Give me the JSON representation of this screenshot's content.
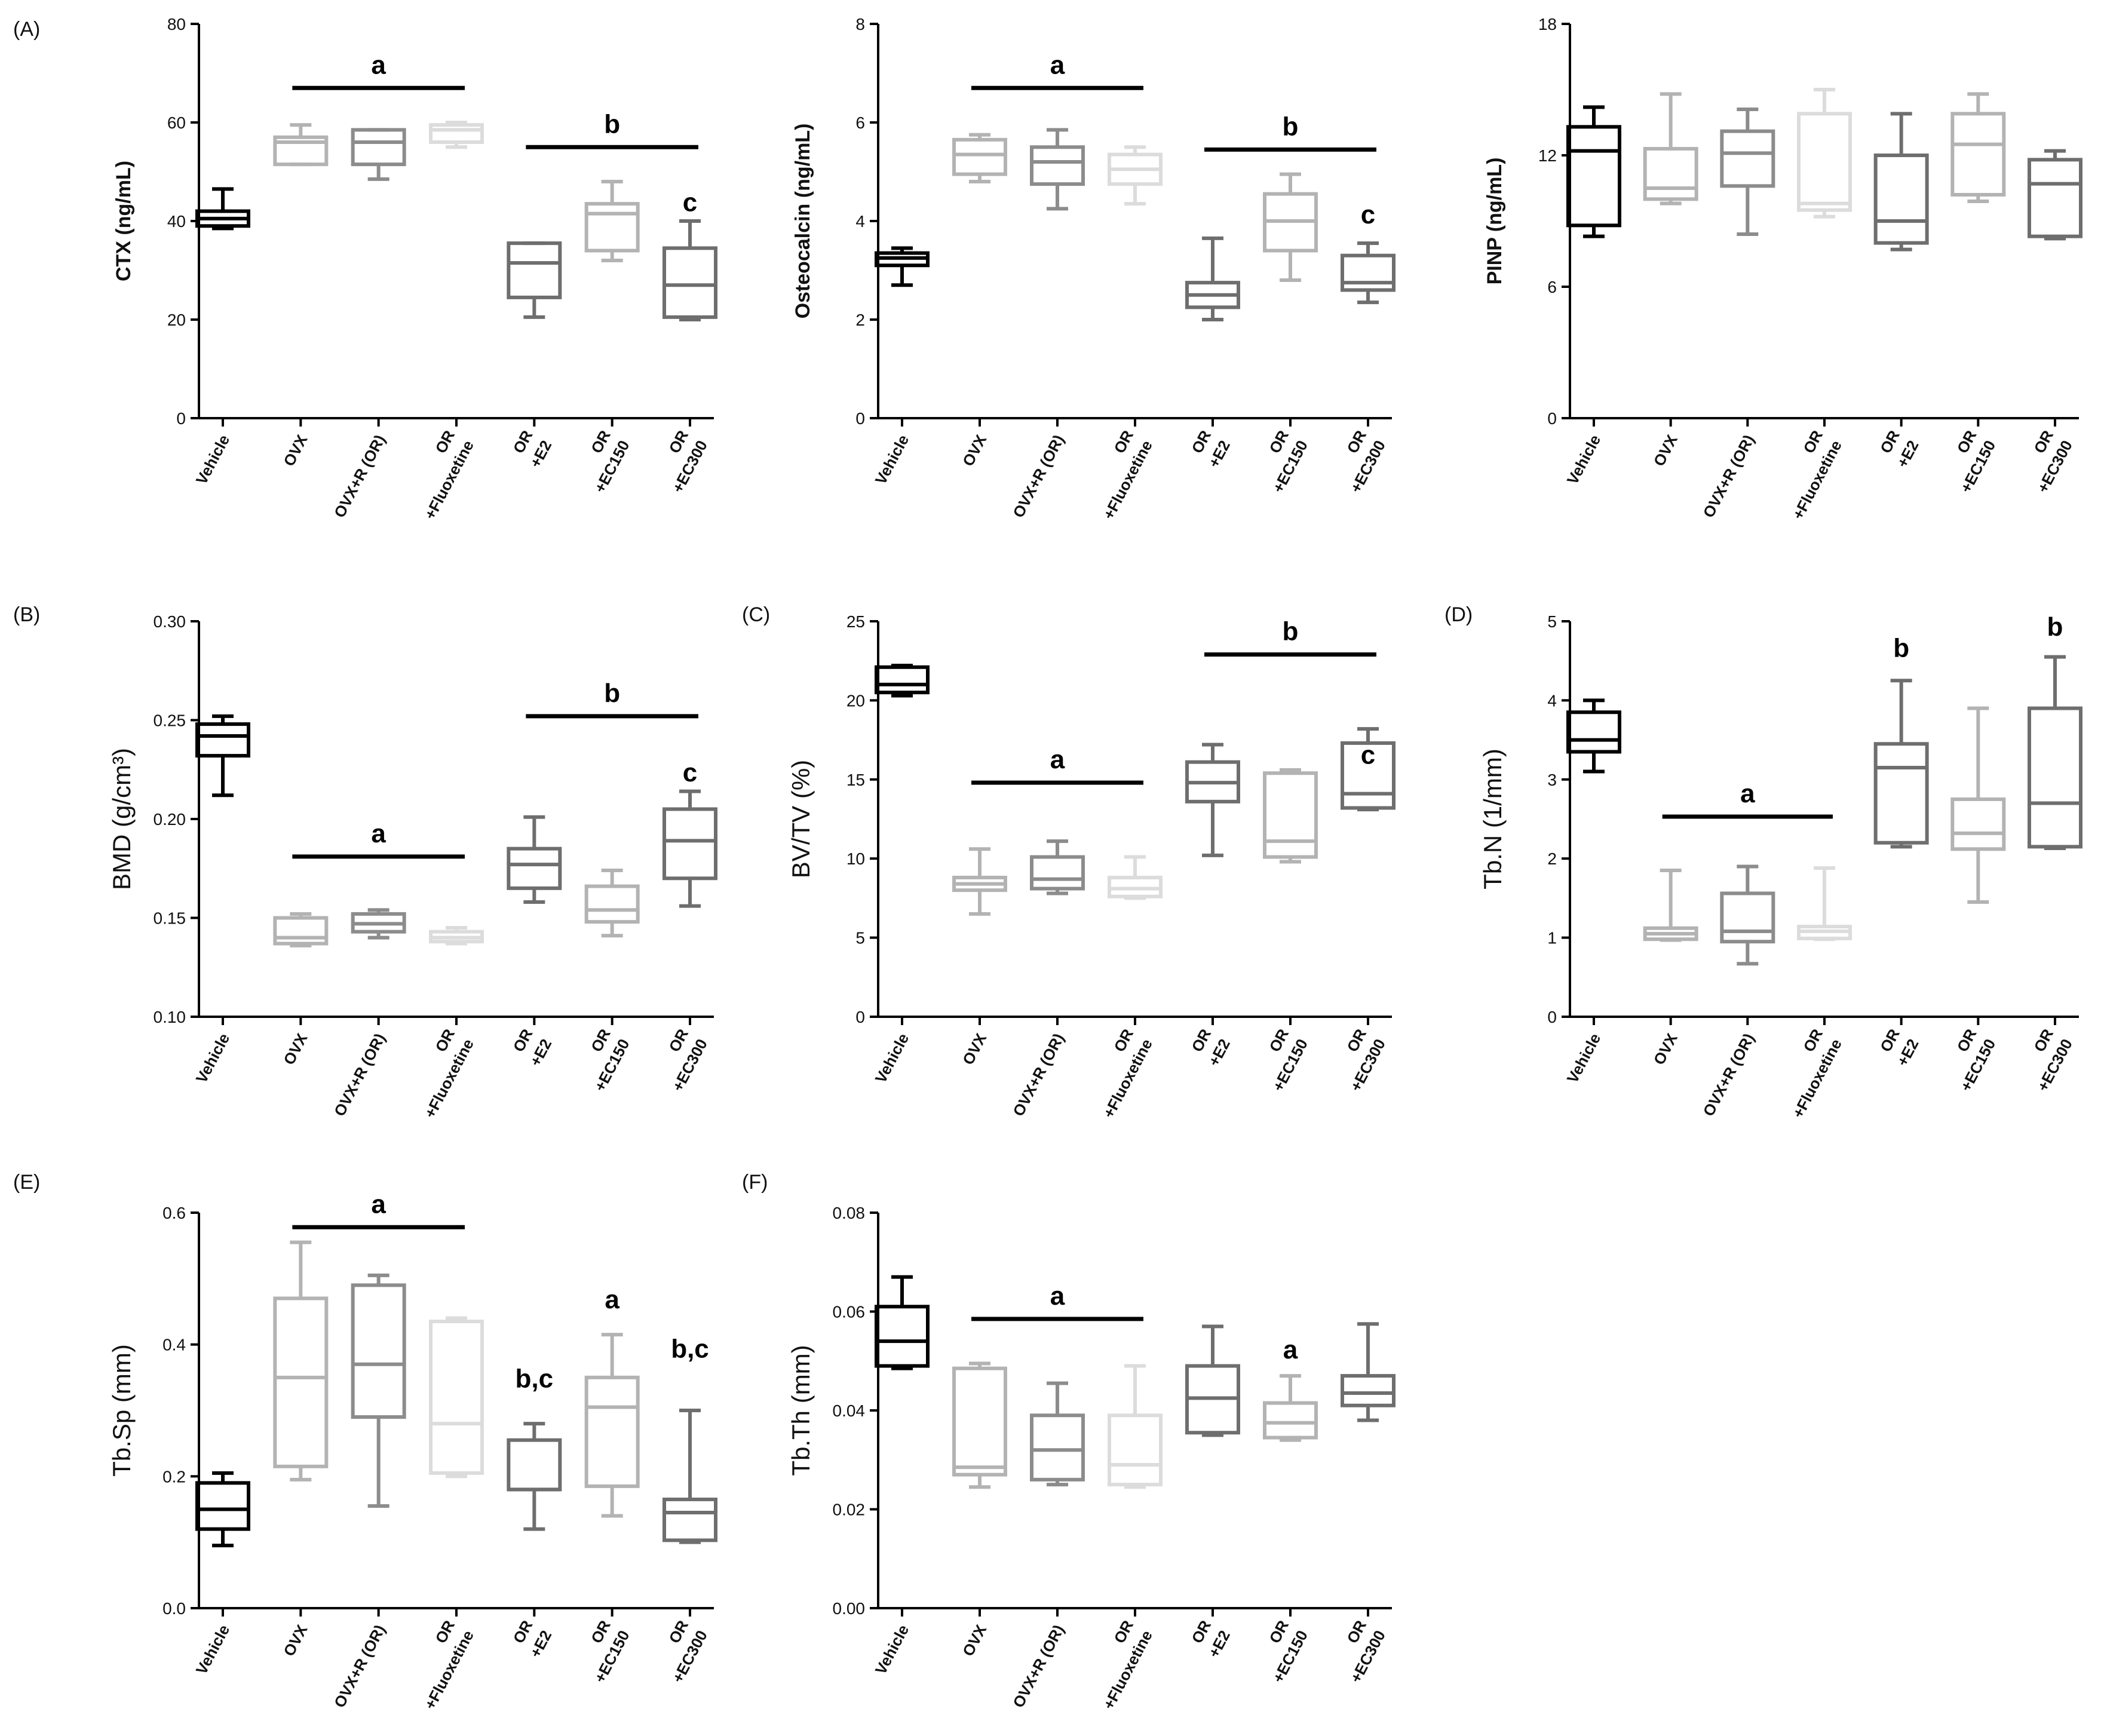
{
  "figure": {
    "panels": [
      {
        "id": "A1",
        "label": "(A)"
      },
      {
        "id": "A2",
        "label": ""
      },
      {
        "id": "A3",
        "label": ""
      },
      {
        "id": "B",
        "label": "(B)"
      },
      {
        "id": "C",
        "label": "(C)"
      },
      {
        "id": "D",
        "label": "(D)"
      },
      {
        "id": "E",
        "label": "(E)"
      },
      {
        "id": "F",
        "label": "(F)"
      }
    ]
  },
  "chart_data": [
    {
      "id": "A1",
      "type": "box",
      "panel_label": "(A)",
      "ylabel": "CTX (ng/mL)",
      "ylim": [
        0,
        80
      ],
      "yticks": [
        "0",
        "20",
        "40",
        "60",
        "80"
      ],
      "categories": [
        [
          "Vehicle"
        ],
        [
          "OVX"
        ],
        [
          "OVX+R (OR)"
        ],
        [
          "OR",
          "+Fluoxetine"
        ],
        [
          "OR",
          "+E2"
        ],
        [
          "OR",
          "+EC150"
        ],
        [
          "OR",
          "+EC300"
        ]
      ],
      "colors": [
        "#000000",
        "#b3b3b3",
        "#8c8c8c",
        "#dcdcdc",
        "#6e6e6e",
        "#b3b3b3",
        "#6e6e6e"
      ],
      "boxes": [
        {
          "min": 38.5,
          "q1": 39,
          "median": 40.5,
          "q3": 42,
          "max": 46.5
        },
        {
          "min": 51.5,
          "q1": 51.5,
          "median": 56,
          "q3": 57,
          "max": 59.5
        },
        {
          "min": 48.5,
          "q1": 51.5,
          "median": 56,
          "q3": 58.5,
          "max": 58.5
        },
        {
          "min": 55,
          "q1": 56,
          "median": 58.5,
          "q3": 59.5,
          "max": 60
        },
        {
          "min": 20.5,
          "q1": 24.5,
          "median": 31.5,
          "q3": 35.5,
          "max": 35.5
        },
        {
          "min": 32,
          "q1": 34,
          "median": 41.5,
          "q3": 43.5,
          "max": 48
        },
        {
          "min": 20,
          "q1": 20.5,
          "median": 27,
          "q3": 34.5,
          "max": 40
        }
      ],
      "annotations": [
        {
          "text": "a",
          "bar": [
            1,
            3
          ],
          "y": 67
        },
        {
          "text": "b",
          "bar": [
            4,
            6
          ],
          "y": 55
        },
        {
          "text": "c",
          "cat": 6,
          "y": 42
        }
      ]
    },
    {
      "id": "A2",
      "type": "box",
      "panel_label": "",
      "ylabel": "Osteocalcin (ng/mL)",
      "ylim": [
        0,
        8
      ],
      "yticks": [
        "0",
        "2",
        "4",
        "6",
        "8"
      ],
      "categories": [
        [
          "Vehicle"
        ],
        [
          "OVX"
        ],
        [
          "OVX+R (OR)"
        ],
        [
          "OR",
          "+Fluoxetine"
        ],
        [
          "OR",
          "+E2"
        ],
        [
          "OR",
          "+EC150"
        ],
        [
          "OR",
          "+EC300"
        ]
      ],
      "colors": [
        "#000000",
        "#b3b3b3",
        "#8c8c8c",
        "#dcdcdc",
        "#6e6e6e",
        "#b3b3b3",
        "#6e6e6e"
      ],
      "boxes": [
        {
          "min": 2.7,
          "q1": 3.1,
          "median": 3.25,
          "q3": 3.35,
          "max": 3.45
        },
        {
          "min": 4.8,
          "q1": 4.95,
          "median": 5.35,
          "q3": 5.65,
          "max": 5.75
        },
        {
          "min": 4.25,
          "q1": 4.75,
          "median": 5.2,
          "q3": 5.5,
          "max": 5.85
        },
        {
          "min": 4.35,
          "q1": 4.75,
          "median": 5.05,
          "q3": 5.35,
          "max": 5.5
        },
        {
          "min": 2.0,
          "q1": 2.25,
          "median": 2.5,
          "q3": 2.75,
          "max": 3.65
        },
        {
          "min": 2.8,
          "q1": 3.4,
          "median": 4.0,
          "q3": 4.55,
          "max": 4.95
        },
        {
          "min": 2.35,
          "q1": 2.6,
          "median": 2.75,
          "q3": 3.3,
          "max": 3.55
        }
      ],
      "annotations": [
        {
          "text": "a",
          "bar": [
            1,
            3
          ],
          "y": 6.7
        },
        {
          "text": "b",
          "bar": [
            4,
            6
          ],
          "y": 5.45
        },
        {
          "text": "c",
          "cat": 6,
          "y": 3.95
        }
      ]
    },
    {
      "id": "A3",
      "type": "box",
      "panel_label": "",
      "ylabel": "PINP (ng/mL)",
      "ylim": [
        0,
        18
      ],
      "yticks": [
        "0",
        "6",
        "12",
        "18"
      ],
      "categories": [
        [
          "Vehicle"
        ],
        [
          "OVX"
        ],
        [
          "OVX+R (OR)"
        ],
        [
          "OR",
          "+Fluoxetine"
        ],
        [
          "OR",
          "+E2"
        ],
        [
          "OR",
          "+EC150"
        ],
        [
          "OR",
          "+EC300"
        ]
      ],
      "colors": [
        "#000000",
        "#b3b3b3",
        "#8c8c8c",
        "#dcdcdc",
        "#6e6e6e",
        "#b3b3b3",
        "#6e6e6e"
      ],
      "boxes": [
        {
          "min": 8.3,
          "q1": 8.8,
          "median": 12.2,
          "q3": 13.3,
          "max": 14.2
        },
        {
          "min": 9.8,
          "q1": 10.0,
          "median": 10.5,
          "q3": 12.3,
          "max": 14.8
        },
        {
          "min": 8.4,
          "q1": 10.6,
          "median": 12.1,
          "q3": 13.1,
          "max": 14.1
        },
        {
          "min": 9.2,
          "q1": 9.5,
          "median": 9.8,
          "q3": 13.9,
          "max": 15.0
        },
        {
          "min": 7.7,
          "q1": 8.0,
          "median": 9.0,
          "q3": 12.0,
          "max": 13.9
        },
        {
          "min": 9.9,
          "q1": 10.2,
          "median": 12.5,
          "q3": 13.9,
          "max": 14.8
        },
        {
          "min": 8.2,
          "q1": 8.3,
          "median": 10.7,
          "q3": 11.8,
          "max": 12.2
        }
      ],
      "annotations": []
    },
    {
      "id": "B",
      "type": "box",
      "panel_label": "(B)",
      "ylabel": "BMD (g/cm³)",
      "ylim": [
        0.1,
        0.3
      ],
      "yticks": [
        "0.10",
        "0.15",
        "0.20",
        "0.25",
        "0.30"
      ],
      "categories": [
        [
          "Vehicle"
        ],
        [
          "OVX"
        ],
        [
          "OVX+R (OR)"
        ],
        [
          "OR",
          "+Fluoxetine"
        ],
        [
          "OR",
          "+E2"
        ],
        [
          "OR",
          "+EC150"
        ],
        [
          "OR",
          "+EC300"
        ]
      ],
      "colors": [
        "#000000",
        "#b3b3b3",
        "#8c8c8c",
        "#dcdcdc",
        "#6e6e6e",
        "#b3b3b3",
        "#6e6e6e"
      ],
      "boxes": [
        {
          "min": 0.212,
          "q1": 0.232,
          "median": 0.242,
          "q3": 0.248,
          "max": 0.252
        },
        {
          "min": 0.136,
          "q1": 0.137,
          "median": 0.14,
          "q3": 0.15,
          "max": 0.152
        },
        {
          "min": 0.14,
          "q1": 0.143,
          "median": 0.147,
          "q3": 0.152,
          "max": 0.154
        },
        {
          "min": 0.137,
          "q1": 0.138,
          "median": 0.14,
          "q3": 0.143,
          "max": 0.145
        },
        {
          "min": 0.158,
          "q1": 0.165,
          "median": 0.177,
          "q3": 0.185,
          "max": 0.201
        },
        {
          "min": 0.141,
          "q1": 0.148,
          "median": 0.154,
          "q3": 0.166,
          "max": 0.174
        },
        {
          "min": 0.156,
          "q1": 0.17,
          "median": 0.189,
          "q3": 0.205,
          "max": 0.214
        }
      ],
      "annotations": [
        {
          "text": "a",
          "bar": [
            1,
            3
          ],
          "y": 0.181
        },
        {
          "text": "b",
          "bar": [
            4,
            6
          ],
          "y": 0.252
        },
        {
          "text": "c",
          "cat": 6,
          "y": 0.219
        }
      ]
    },
    {
      "id": "C",
      "type": "box",
      "panel_label": "(C)",
      "ylabel": "BV/TV (%)",
      "ylim": [
        0,
        25
      ],
      "yticks": [
        "0",
        "5",
        "10",
        "15",
        "20",
        "25"
      ],
      "categories": [
        [
          "Vehicle"
        ],
        [
          "OVX"
        ],
        [
          "OVX+R (OR)"
        ],
        [
          "OR",
          "+Fluoxetine"
        ],
        [
          "OR",
          "+E2"
        ],
        [
          "OR",
          "+EC150"
        ],
        [
          "OR",
          "+EC300"
        ]
      ],
      "colors": [
        "#000000",
        "#b3b3b3",
        "#8c8c8c",
        "#dcdcdc",
        "#6e6e6e",
        "#b3b3b3",
        "#6e6e6e"
      ],
      "boxes": [
        {
          "min": 20.3,
          "q1": 20.5,
          "median": 21.0,
          "q3": 22.1,
          "max": 22.2
        },
        {
          "min": 6.5,
          "q1": 8.0,
          "median": 8.4,
          "q3": 8.8,
          "max": 10.6
        },
        {
          "min": 7.8,
          "q1": 8.1,
          "median": 8.7,
          "q3": 10.1,
          "max": 11.1
        },
        {
          "min": 7.5,
          "q1": 7.6,
          "median": 8.1,
          "q3": 8.8,
          "max": 10.1
        },
        {
          "min": 10.2,
          "q1": 13.6,
          "median": 14.8,
          "q3": 16.1,
          "max": 17.2
        },
        {
          "min": 9.8,
          "q1": 10.1,
          "median": 11.1,
          "q3": 15.4,
          "max": 15.6
        },
        {
          "min": 13.1,
          "q1": 13.2,
          "median": 14.1,
          "q3": 17.3,
          "max": 18.2
        }
      ],
      "annotations": [
        {
          "text": "a",
          "bar": [
            1,
            3
          ],
          "y": 14.8
        },
        {
          "text": "b",
          "bar": [
            4,
            6
          ],
          "y": 22.9
        },
        {
          "text": "c",
          "cat": 6,
          "y": 16.0
        }
      ]
    },
    {
      "id": "D",
      "type": "box",
      "panel_label": "(D)",
      "ylabel": "Tb.N (1/mm)",
      "ylim": [
        0,
        5
      ],
      "yticks": [
        "0",
        "1",
        "2",
        "3",
        "4",
        "5"
      ],
      "categories": [
        [
          "Vehicle"
        ],
        [
          "OVX"
        ],
        [
          "OVX+R (OR)"
        ],
        [
          "OR",
          "+Fluoxetine"
        ],
        [
          "OR",
          "+E2"
        ],
        [
          "OR",
          "+EC150"
        ],
        [
          "OR",
          "+EC300"
        ]
      ],
      "colors": [
        "#000000",
        "#b3b3b3",
        "#8c8c8c",
        "#dcdcdc",
        "#6e6e6e",
        "#b3b3b3",
        "#6e6e6e"
      ],
      "boxes": [
        {
          "min": 3.1,
          "q1": 3.35,
          "median": 3.5,
          "q3": 3.85,
          "max": 4.0
        },
        {
          "min": 0.97,
          "q1": 0.98,
          "median": 1.05,
          "q3": 1.12,
          "max": 1.85
        },
        {
          "min": 0.67,
          "q1": 0.95,
          "median": 1.08,
          "q3": 1.56,
          "max": 1.9
        },
        {
          "min": 0.98,
          "q1": 0.99,
          "median": 1.08,
          "q3": 1.14,
          "max": 1.88
        },
        {
          "min": 2.15,
          "q1": 2.2,
          "median": 3.15,
          "q3": 3.45,
          "max": 4.25
        },
        {
          "min": 1.45,
          "q1": 2.12,
          "median": 2.32,
          "q3": 2.75,
          "max": 3.9
        },
        {
          "min": 2.13,
          "q1": 2.15,
          "median": 2.7,
          "q3": 3.9,
          "max": 4.55
        }
      ],
      "annotations": [
        {
          "text": "a",
          "bar": [
            1,
            3
          ],
          "y": 2.53
        },
        {
          "text": "b",
          "cat": 4,
          "y": 4.55
        },
        {
          "text": "b",
          "cat": 6,
          "y": 4.82
        }
      ]
    },
    {
      "id": "E",
      "type": "box",
      "panel_label": "(E)",
      "ylabel": "Tb.Sp (mm)",
      "ylim": [
        0,
        0.6
      ],
      "yticks": [
        "0.0",
        "0.2",
        "0.4",
        "0.6"
      ],
      "categories": [
        [
          "Vehicle"
        ],
        [
          "OVX"
        ],
        [
          "OVX+R (OR)"
        ],
        [
          "OR",
          "+Fluoxetine"
        ],
        [
          "OR",
          "+E2"
        ],
        [
          "OR",
          "+EC150"
        ],
        [
          "OR",
          "+EC300"
        ]
      ],
      "colors": [
        "#000000",
        "#b3b3b3",
        "#8c8c8c",
        "#dcdcdc",
        "#6e6e6e",
        "#b3b3b3",
        "#6e6e6e"
      ],
      "boxes": [
        {
          "min": 0.095,
          "q1": 0.12,
          "median": 0.15,
          "q3": 0.19,
          "max": 0.205
        },
        {
          "min": 0.195,
          "q1": 0.215,
          "median": 0.35,
          "q3": 0.47,
          "max": 0.555
        },
        {
          "min": 0.155,
          "q1": 0.29,
          "median": 0.37,
          "q3": 0.49,
          "max": 0.505
        },
        {
          "min": 0.2,
          "q1": 0.205,
          "median": 0.28,
          "q3": 0.435,
          "max": 0.44
        },
        {
          "min": 0.12,
          "q1": 0.18,
          "median": 0.18,
          "q3": 0.255,
          "max": 0.28
        },
        {
          "min": 0.14,
          "q1": 0.185,
          "median": 0.305,
          "q3": 0.35,
          "max": 0.415
        },
        {
          "min": 0.1,
          "q1": 0.103,
          "median": 0.145,
          "q3": 0.165,
          "max": 0.3
        }
      ],
      "annotations": [
        {
          "text": "a",
          "bar": [
            1,
            3
          ],
          "y": 0.578
        },
        {
          "text": "b,c",
          "cat": 4,
          "y": 0.335
        },
        {
          "text": "a",
          "cat": 5,
          "y": 0.455
        },
        {
          "text": "b,c",
          "cat": 6,
          "y": 0.38
        }
      ]
    },
    {
      "id": "F",
      "type": "box",
      "panel_label": "(F)",
      "ylabel": "Tb.Th (mm)",
      "ylim": [
        0,
        0.08
      ],
      "yticks": [
        "0.00",
        "0.02",
        "0.04",
        "0.06",
        "0.08"
      ],
      "categories": [
        [
          "Vehicle"
        ],
        [
          "OVX"
        ],
        [
          "OVX+R (OR)"
        ],
        [
          "OR",
          "+Fluoxetine"
        ],
        [
          "OR",
          "+E2"
        ],
        [
          "OR",
          "+EC150"
        ],
        [
          "OR",
          "+EC300"
        ]
      ],
      "colors": [
        "#000000",
        "#b3b3b3",
        "#8c8c8c",
        "#dcdcdc",
        "#6e6e6e",
        "#b3b3b3",
        "#6e6e6e"
      ],
      "boxes": [
        {
          "min": 0.0485,
          "q1": 0.049,
          "median": 0.054,
          "q3": 0.061,
          "max": 0.067
        },
        {
          "min": 0.0245,
          "q1": 0.027,
          "median": 0.0285,
          "q3": 0.0485,
          "max": 0.0495
        },
        {
          "min": 0.025,
          "q1": 0.026,
          "median": 0.032,
          "q3": 0.039,
          "max": 0.0455
        },
        {
          "min": 0.0245,
          "q1": 0.025,
          "median": 0.029,
          "q3": 0.039,
          "max": 0.049
        },
        {
          "min": 0.035,
          "q1": 0.0355,
          "median": 0.0425,
          "q3": 0.049,
          "max": 0.057
        },
        {
          "min": 0.034,
          "q1": 0.0345,
          "median": 0.0375,
          "q3": 0.0415,
          "max": 0.047
        },
        {
          "min": 0.038,
          "q1": 0.041,
          "median": 0.0435,
          "q3": 0.047,
          "max": 0.0575
        }
      ],
      "annotations": [
        {
          "text": "a",
          "bar": [
            1,
            3
          ],
          "y": 0.0585
        },
        {
          "text": "a",
          "cat": 5,
          "y": 0.0505
        }
      ]
    }
  ]
}
